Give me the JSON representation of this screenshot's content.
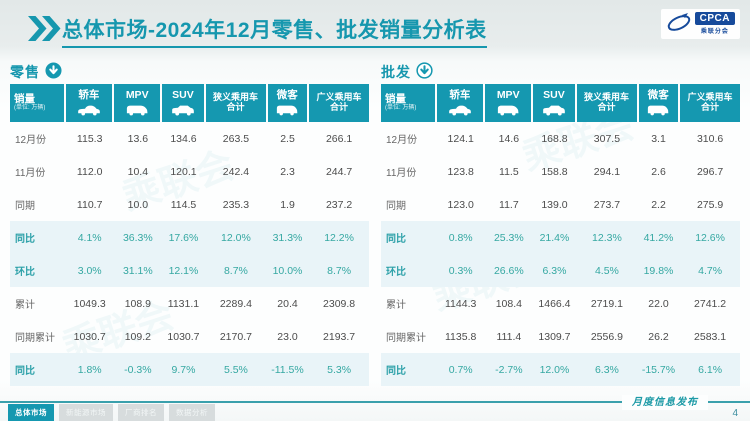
{
  "header": {
    "title": "总体市场-2024年12月零售、批发销量分析表",
    "logo": {
      "brand": "CPCA",
      "sub": "乘联分会"
    }
  },
  "columns": [
    {
      "key": "sales",
      "label": "销量",
      "sub": "(单位: 万辆)"
    },
    {
      "key": "sedan",
      "label": "轿车",
      "icon": "sedan-icon"
    },
    {
      "key": "mpv",
      "label": "MPV",
      "icon": "mpv-icon"
    },
    {
      "key": "suv",
      "label": "SUV",
      "icon": "suv-icon"
    },
    {
      "key": "narrow-pv",
      "label": "狭义乘用车",
      "label2": "合计"
    },
    {
      "key": "minibus",
      "label": "微客",
      "icon": "minibus-icon"
    },
    {
      "key": "broad-pv",
      "label": "广义乘用车",
      "label2": "合计"
    }
  ],
  "tables": [
    {
      "name": "零售",
      "icon_style": "solid",
      "rows": [
        {
          "label": "12月份",
          "highlight": false,
          "values": [
            "115.3",
            "13.6",
            "134.6",
            "263.5",
            "2.5",
            "266.1"
          ]
        },
        {
          "label": "11月份",
          "highlight": false,
          "values": [
            "112.0",
            "10.4",
            "120.1",
            "242.4",
            "2.3",
            "244.7"
          ]
        },
        {
          "label": "同期",
          "highlight": false,
          "values": [
            "110.7",
            "10.0",
            "114.5",
            "235.3",
            "1.9",
            "237.2"
          ]
        },
        {
          "label": "同比",
          "highlight": true,
          "values": [
            "4.1%",
            "36.3%",
            "17.6%",
            "12.0%",
            "31.3%",
            "12.2%"
          ]
        },
        {
          "label": "环比",
          "highlight": true,
          "values": [
            "3.0%",
            "31.1%",
            "12.1%",
            "8.7%",
            "10.0%",
            "8.7%"
          ]
        },
        {
          "label": "累计",
          "highlight": false,
          "values": [
            "1049.3",
            "108.9",
            "1131.1",
            "2289.4",
            "20.4",
            "2309.8"
          ]
        },
        {
          "label": "同期累计",
          "highlight": false,
          "values": [
            "1030.7",
            "109.2",
            "1030.7",
            "2170.7",
            "23.0",
            "2193.7"
          ]
        },
        {
          "label": "同比",
          "highlight": true,
          "values": [
            "1.8%",
            "-0.3%",
            "9.7%",
            "5.5%",
            "-11.5%",
            "5.3%"
          ]
        }
      ]
    },
    {
      "name": "批发",
      "icon_style": "outline",
      "rows": [
        {
          "label": "12月份",
          "highlight": false,
          "values": [
            "124.1",
            "14.6",
            "168.8",
            "307.5",
            "3.1",
            "310.6"
          ]
        },
        {
          "label": "11月份",
          "highlight": false,
          "values": [
            "123.8",
            "11.5",
            "158.8",
            "294.1",
            "2.6",
            "296.7"
          ]
        },
        {
          "label": "同期",
          "highlight": false,
          "values": [
            "123.0",
            "11.7",
            "139.0",
            "273.7",
            "2.2",
            "275.9"
          ]
        },
        {
          "label": "同比",
          "highlight": true,
          "values": [
            "0.8%",
            "25.3%",
            "21.4%",
            "12.3%",
            "41.2%",
            "12.6%"
          ]
        },
        {
          "label": "环比",
          "highlight": true,
          "values": [
            "0.3%",
            "26.6%",
            "6.3%",
            "4.5%",
            "19.8%",
            "4.7%"
          ]
        },
        {
          "label": "累计",
          "highlight": false,
          "values": [
            "1144.3",
            "108.4",
            "1466.4",
            "2719.1",
            "22.0",
            "2741.2"
          ]
        },
        {
          "label": "同期累计",
          "highlight": false,
          "values": [
            "1135.8",
            "111.4",
            "1309.7",
            "2556.9",
            "26.2",
            "2583.1"
          ]
        },
        {
          "label": "同比",
          "highlight": true,
          "values": [
            "0.7%",
            "-2.7%",
            "12.0%",
            "6.3%",
            "-15.7%",
            "6.1%"
          ]
        }
      ]
    }
  ],
  "watermark": "乘联会",
  "footer": {
    "tabs": [
      {
        "label": "总体市场",
        "active": true
      },
      {
        "label": "新能源市场",
        "active": false
      },
      {
        "label": "厂商排名",
        "active": false
      },
      {
        "label": "数据分析",
        "active": false
      }
    ],
    "caption": "月度信息发布",
    "page": "4"
  },
  "colors": {
    "accent": "#1697ae",
    "table_header_bg": "#1598b0",
    "highlight_row_bg": "#e9f4f8",
    "highlight_text": "#35a8a2",
    "logo_blue": "#164a9b"
  }
}
